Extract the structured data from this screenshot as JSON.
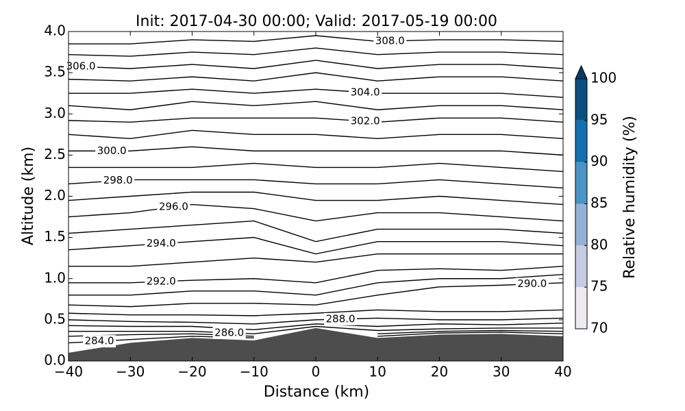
{
  "chart_data": {
    "type": "contour",
    "title": "Init: 2017-04-30 00:00; Valid: 2017-05-19 00:00",
    "x_label": "Distance (km)",
    "y_label": "Altitude (km)",
    "x": [
      -40,
      -30,
      -20,
      -10,
      0,
      10,
      20,
      30,
      40
    ],
    "xlim": [
      -40,
      40
    ],
    "xticks": [
      {
        "value": -40,
        "label": "−40"
      },
      {
        "value": -30,
        "label": "−30"
      },
      {
        "value": -20,
        "label": "−20"
      },
      {
        "value": -10,
        "label": "−10"
      },
      0,
      10,
      20,
      30,
      40
    ],
    "ylim": [
      0,
      4
    ],
    "yticks": [
      {
        "value": 0,
        "label": "0.0"
      },
      0.5,
      {
        "value": 1,
        "label": "1.0"
      },
      1.5,
      {
        "value": 2,
        "label": "2.0"
      },
      2.5,
      {
        "value": 3,
        "label": "3.0"
      },
      3.5,
      {
        "value": 4,
        "label": "4.0"
      }
    ],
    "terrain": {
      "color": "#4d4d4d",
      "values": [
        0.1,
        0.22,
        0.28,
        0.25,
        0.4,
        0.28,
        0.32,
        0.33,
        0.3
      ]
    },
    "contour_color": "#000000",
    "contours": [
      {
        "label": "284.0",
        "values": [
          0.22,
          0.26,
          0.3,
          0.28,
          null,
          0.3,
          0.34,
          0.35,
          0.33
        ]
      },
      {
        "values": [
          0.3,
          0.32,
          0.33,
          0.3,
          null,
          0.33,
          0.36,
          0.37,
          0.36
        ]
      },
      {
        "label": "286.0",
        "values": [
          0.36,
          0.36,
          0.36,
          0.33,
          0.42,
          0.37,
          0.39,
          0.4,
          0.4
        ]
      },
      {
        "values": [
          0.43,
          0.42,
          0.42,
          0.38,
          0.45,
          0.42,
          0.45,
          0.44,
          0.46
        ]
      },
      {
        "label": "288.0",
        "values": [
          0.5,
          0.48,
          0.47,
          0.45,
          0.5,
          0.52,
          0.5,
          0.5,
          0.52
        ]
      },
      {
        "values": [
          0.58,
          0.56,
          0.56,
          0.55,
          0.58,
          0.62,
          0.6,
          0.6,
          0.62
        ]
      },
      {
        "label": "290.0",
        "values": [
          0.68,
          0.66,
          0.7,
          0.7,
          0.68,
          0.8,
          0.9,
          0.92,
          0.95
        ]
      },
      {
        "values": [
          0.8,
          0.8,
          0.85,
          0.85,
          0.8,
          0.95,
          1.0,
          1.0,
          1.05
        ]
      },
      {
        "label": "292.0",
        "values": [
          0.95,
          0.95,
          0.98,
          1.0,
          0.95,
          1.1,
          1.12,
          1.1,
          1.15
        ]
      },
      {
        "values": [
          1.15,
          1.15,
          1.2,
          1.25,
          1.2,
          1.3,
          1.3,
          1.3,
          1.3
        ]
      },
      {
        "label": "294.0",
        "values": [
          1.35,
          1.4,
          1.45,
          1.5,
          1.3,
          1.45,
          1.45,
          1.45,
          1.4
        ]
      },
      {
        "values": [
          1.55,
          1.6,
          1.65,
          1.7,
          1.45,
          1.6,
          1.6,
          1.6,
          1.55
        ]
      },
      {
        "label": "296.0",
        "values": [
          1.75,
          1.8,
          1.9,
          1.85,
          1.7,
          1.8,
          1.8,
          1.75,
          1.7
        ]
      },
      {
        "values": [
          1.95,
          2.0,
          2.05,
          2.05,
          1.95,
          1.95,
          2.0,
          1.95,
          1.9
        ]
      },
      {
        "label": "298.0",
        "values": [
          2.15,
          2.2,
          2.2,
          2.2,
          2.15,
          2.15,
          2.2,
          2.15,
          2.1
        ]
      },
      {
        "values": [
          2.35,
          2.35,
          2.35,
          2.4,
          2.35,
          2.35,
          2.4,
          2.35,
          2.3
        ]
      },
      {
        "label": "300.0",
        "values": [
          2.55,
          2.55,
          2.6,
          2.55,
          2.55,
          2.55,
          2.55,
          2.55,
          2.5
        ]
      },
      {
        "values": [
          2.75,
          2.7,
          2.8,
          2.75,
          2.75,
          2.7,
          2.75,
          2.75,
          2.7
        ]
      },
      {
        "label": "302.0",
        "values": [
          2.92,
          2.9,
          2.95,
          2.95,
          2.95,
          2.9,
          2.95,
          2.95,
          2.9
        ]
      },
      {
        "values": [
          3.1,
          3.05,
          3.15,
          3.1,
          3.15,
          3.05,
          3.1,
          3.1,
          3.05
        ]
      },
      {
        "label": "304.0",
        "values": [
          3.25,
          3.25,
          3.3,
          3.25,
          3.3,
          3.25,
          3.25,
          3.25,
          3.2
        ]
      },
      {
        "values": [
          3.42,
          3.4,
          3.45,
          3.4,
          3.5,
          3.4,
          3.45,
          3.45,
          3.4
        ]
      },
      {
        "label": "306.0",
        "values": [
          3.58,
          3.55,
          3.6,
          3.55,
          3.65,
          3.55,
          3.6,
          3.6,
          3.55
        ]
      },
      {
        "values": [
          3.72,
          3.7,
          3.75,
          3.72,
          3.8,
          3.72,
          3.75,
          3.75,
          3.72
        ]
      },
      {
        "label": "308.0",
        "values": [
          3.85,
          3.85,
          3.9,
          3.88,
          3.95,
          3.88,
          3.9,
          3.9,
          3.88
        ]
      }
    ],
    "colorbar": {
      "label": "Relative humidity (%)",
      "ticks": [
        70,
        75,
        80,
        85,
        90,
        95,
        100
      ],
      "colors": [
        "#efeaf2",
        "#c6cae2",
        "#93b3d6",
        "#4a94c6",
        "#1270b0",
        "#0a4f80"
      ],
      "extend_color": "#053a63"
    }
  }
}
